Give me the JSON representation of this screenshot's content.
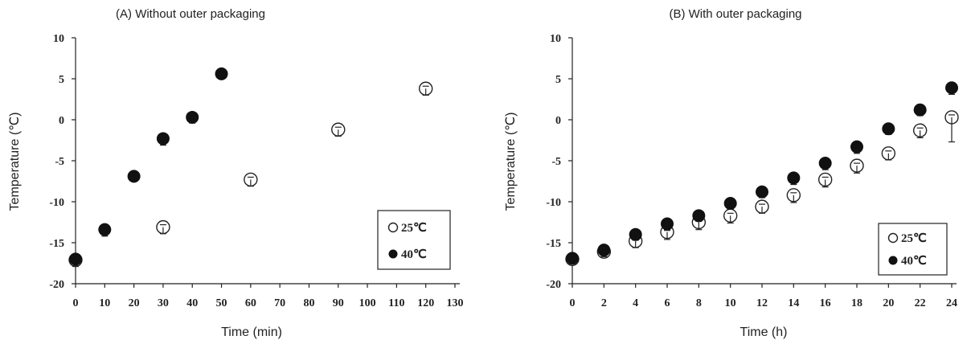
{
  "chart_data": [
    {
      "type": "scatter",
      "title": "(A) Without outer packaging",
      "xlabel": "Time (min)",
      "ylabel": "Temperature (℃)",
      "xlim": [
        0,
        130
      ],
      "ylim": [
        -20,
        10
      ],
      "xticks": [
        0,
        10,
        20,
        30,
        40,
        50,
        60,
        70,
        80,
        90,
        100,
        110,
        120,
        130
      ],
      "yticks": [
        10,
        5,
        0,
        -5,
        -10,
        -15,
        -20
      ],
      "grid": false,
      "legend_position": "bottom-right",
      "series": [
        {
          "name": "25℃",
          "marker": "open-circle",
          "color": "#222222",
          "points": [
            {
              "x": 0,
              "y": -17.1,
              "err": 0.8
            },
            {
              "x": 30,
              "y": -13.1,
              "err": 0.8
            },
            {
              "x": 60,
              "y": -7.3,
              "err": 0.8
            },
            {
              "x": 90,
              "y": -1.2,
              "err": 0.8
            },
            {
              "x": 120,
              "y": 3.8,
              "err": 0.8
            }
          ]
        },
        {
          "name": "40℃",
          "marker": "filled-circle",
          "color": "#111111",
          "points": [
            {
              "x": 0,
              "y": -17.0,
              "err": 0.8
            },
            {
              "x": 10,
              "y": -13.4,
              "err": 0.8
            },
            {
              "x": 20,
              "y": -6.9,
              "err": 0.6
            },
            {
              "x": 30,
              "y": -2.3,
              "err": 0.8
            },
            {
              "x": 40,
              "y": 0.3,
              "err": 0.7
            },
            {
              "x": 50,
              "y": 5.6,
              "err": 0.6
            }
          ]
        }
      ]
    },
    {
      "type": "scatter",
      "title": "(B) With outer packaging",
      "xlabel": "Time (h)",
      "ylabel": "Temperature (℃)",
      "xlim": [
        0,
        24
      ],
      "ylim": [
        -20,
        10
      ],
      "xticks": [
        0,
        2,
        4,
        6,
        8,
        10,
        12,
        14,
        16,
        18,
        20,
        22,
        24
      ],
      "yticks": [
        10,
        5,
        0,
        -5,
        -10,
        -15,
        -20
      ],
      "grid": false,
      "legend_position": "bottom-right",
      "series": [
        {
          "name": "25℃",
          "marker": "open-circle",
          "color": "#222222",
          "points": [
            {
              "x": 0,
              "y": -17.0,
              "err": 0.6
            },
            {
              "x": 2,
              "y": -16.1,
              "err": 0.6
            },
            {
              "x": 4,
              "y": -14.8,
              "err": 0.8
            },
            {
              "x": 6,
              "y": -13.7,
              "err": 0.9
            },
            {
              "x": 8,
              "y": -12.5,
              "err": 0.9
            },
            {
              "x": 10,
              "y": -11.7,
              "err": 0.9
            },
            {
              "x": 12,
              "y": -10.6,
              "err": 0.8
            },
            {
              "x": 14,
              "y": -9.2,
              "err": 0.9
            },
            {
              "x": 16,
              "y": -7.3,
              "err": 0.9
            },
            {
              "x": 18,
              "y": -5.6,
              "err": 0.9
            },
            {
              "x": 20,
              "y": -4.1,
              "err": 0.8
            },
            {
              "x": 22,
              "y": -1.3,
              "err": 0.9
            },
            {
              "x": 24,
              "y": 0.3,
              "err": 3.0
            }
          ]
        },
        {
          "name": "40℃",
          "marker": "filled-circle",
          "color": "#111111",
          "points": [
            {
              "x": 0,
              "y": -16.9,
              "err": 0.6
            },
            {
              "x": 2,
              "y": -15.9,
              "err": 0.6
            },
            {
              "x": 4,
              "y": -14.0,
              "err": 0.7
            },
            {
              "x": 6,
              "y": -12.7,
              "err": 0.8
            },
            {
              "x": 8,
              "y": -11.7,
              "err": 0.7
            },
            {
              "x": 10,
              "y": -10.2,
              "err": 0.7
            },
            {
              "x": 12,
              "y": -8.8,
              "err": 0.7
            },
            {
              "x": 14,
              "y": -7.1,
              "err": 0.8
            },
            {
              "x": 16,
              "y": -5.3,
              "err": 0.8
            },
            {
              "x": 18,
              "y": -3.3,
              "err": 0.8
            },
            {
              "x": 20,
              "y": -1.1,
              "err": 0.7
            },
            {
              "x": 22,
              "y": 1.2,
              "err": 0.7
            },
            {
              "x": 24,
              "y": 3.9,
              "err": 0.8
            }
          ]
        }
      ]
    }
  ]
}
